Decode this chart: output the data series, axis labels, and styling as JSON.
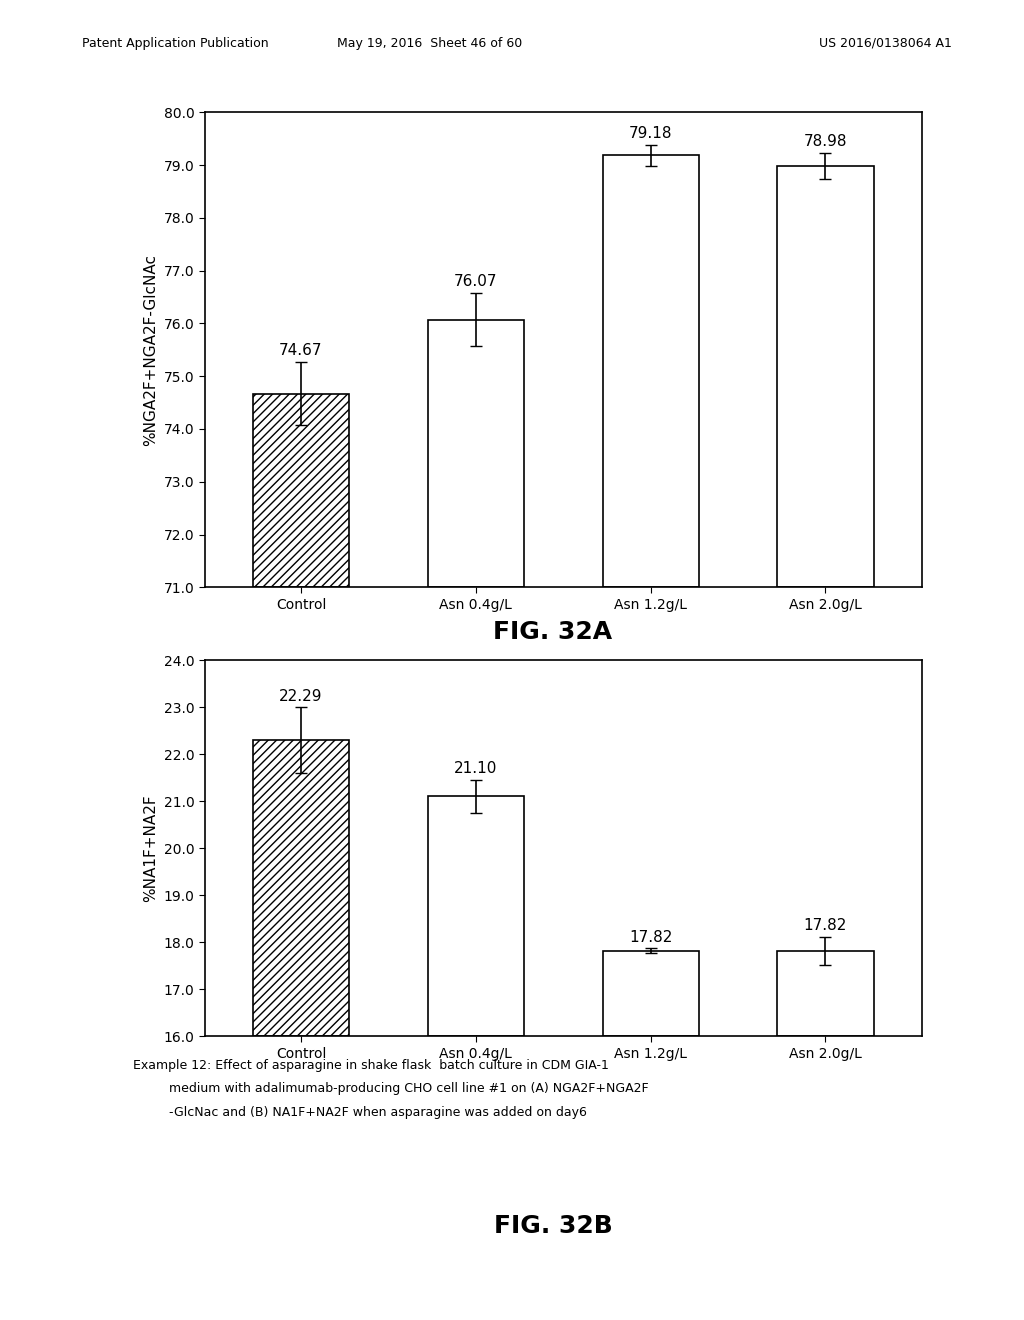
{
  "chart_a": {
    "categories": [
      "Control",
      "Asn 0.4g/L",
      "Asn 1.2g/L",
      "Asn 2.0g/L"
    ],
    "values": [
      74.67,
      76.07,
      79.18,
      78.98
    ],
    "errors": [
      0.6,
      0.5,
      0.2,
      0.25
    ],
    "value_labels": [
      "74.67",
      "76.07",
      "79.18",
      "78.98"
    ],
    "ylabel": "%NGA2F+NGA2F-GlcNAc",
    "ylim": [
      71.0,
      80.0
    ],
    "yticks": [
      71.0,
      72.0,
      73.0,
      74.0,
      75.0,
      76.0,
      77.0,
      78.0,
      79.0,
      80.0
    ],
    "title": "FIG. 32A",
    "hatched_bar": 0
  },
  "chart_b": {
    "categories": [
      "Control",
      "Asn 0.4g/L",
      "Asn 1.2g/L",
      "Asn 2.0g/L"
    ],
    "values": [
      22.29,
      21.1,
      17.82,
      17.82
    ],
    "errors": [
      0.7,
      0.35,
      0.05,
      0.3
    ],
    "value_labels": [
      "22.29",
      "21.10",
      "17.82",
      "17.82"
    ],
    "ylabel": "%NA1F+NA2F",
    "ylim": [
      16.0,
      24.0
    ],
    "yticks": [
      16.0,
      17.0,
      18.0,
      19.0,
      20.0,
      21.0,
      22.0,
      23.0,
      24.0
    ],
    "title": "FIG. 32B",
    "hatched_bar": 0
  },
  "caption_line1": "Example 12: Effect of asparagine in shake flask  batch culture in CDM GIA-1",
  "caption_line2": "         medium with adalimumab-producing CHO cell line #1 on (A) NGA2F+NGA2F",
  "caption_line3": "         -GlcNac and (B) NA1F+NA2F when asparagine was added on day6",
  "header_left": "Patent Application Publication",
  "header_mid": "May 19, 2016  Sheet 46 of 60",
  "header_right": "US 2016/0138064 A1",
  "bg_color": "#ffffff",
  "bar_edge_color": "#000000",
  "bar_face_color_hatched": "#ffffff",
  "bar_face_color_plain": "#ffffff",
  "hatch_pattern": "////",
  "font_color": "#000000",
  "label_fontsize": 11,
  "tick_fontsize": 10,
  "title_fontsize": 18,
  "caption_fontsize": 9,
  "header_fontsize": 9
}
